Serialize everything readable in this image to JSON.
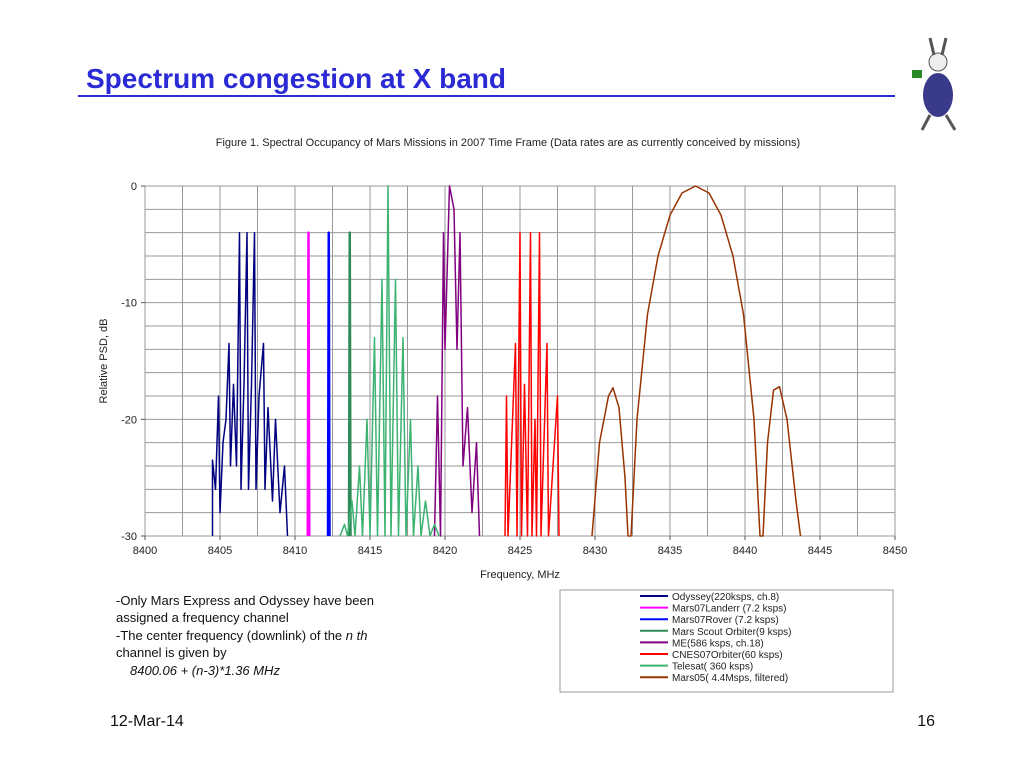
{
  "slide": {
    "title": "Spectrum congestion at X band",
    "notes": [
      "-Only Mars Express and Odyssey have been",
      "assigned a frequency channel",
      "-The center frequency (downlink) of the",
      "n th",
      "channel is given by",
      "8400.06 + (n-3)*1.36 MHz"
    ],
    "date": "12-Mar-14",
    "page": "16"
  },
  "chart_data": {
    "type": "line",
    "title": "Figure 1. Spectral Occupancy of Mars Missions  in 2007 Time Frame (Data rates are as currently conceived by missions)",
    "x_label": "Frequency, MHz",
    "y_label": "Relative PSD, dB",
    "xlim": [
      8400,
      8450
    ],
    "ylim": [
      -30,
      0
    ],
    "xticks": [
      8400,
      8405,
      8410,
      8415,
      8420,
      8425,
      8430,
      8435,
      8440,
      8445,
      8450
    ],
    "yticks": [
      0,
      -10,
      -20,
      -30
    ],
    "xgrid": [
      8400,
      8402.5,
      8405,
      8407.5,
      8410,
      8412.5,
      8415,
      8417.5,
      8420,
      8422.5,
      8425,
      8427.5,
      8430,
      8432.5,
      8435,
      8437.5,
      8440,
      8442.5,
      8445,
      8447.5,
      8450
    ],
    "ygrid": [
      0,
      -2,
      -4,
      -6,
      -8,
      -10,
      -12,
      -14,
      -16,
      -18,
      -20,
      -22,
      -24,
      -26,
      -28,
      -30
    ],
    "legend": "bottom-right",
    "series": [
      {
        "name": "Odyssey(220ksps, ch.8)",
        "color": "#000080",
        "x": [
          8404.5,
          8404.5,
          8404.7,
          8404.9,
          8405.0,
          8405.2,
          8405.4,
          8405.6,
          8405.7,
          8405.9,
          8406.1,
          8406.3,
          8406.4,
          8406.6,
          8406.8,
          8406.9,
          8407.1,
          8407.3,
          8407.4,
          8407.6,
          8407.9,
          8408.0,
          8408.2,
          8408.5,
          8408.7,
          8409.0,
          8409.3,
          8409.5
        ],
        "values": [
          -30,
          -23.5,
          -26,
          -18,
          -28,
          -22,
          -20,
          -13.5,
          -24,
          -17,
          -24,
          -4,
          -26,
          -17,
          -4,
          -26,
          -17,
          -4,
          -26,
          -18,
          -13.5,
          -26,
          -19,
          -27,
          -20,
          -28,
          -24,
          -30
        ]
      },
      {
        "name": "Mars07Landerr (7.2 ksps)",
        "color": "#ff00ff",
        "x": [
          8410.85,
          8410.9,
          8410.95
        ],
        "values": [
          -30,
          -4,
          -30
        ]
      },
      {
        "name": "Mars07Rover (7.2 ksps)",
        "color": "#0000ff",
        "x": [
          8412.2,
          8412.25,
          8412.3
        ],
        "values": [
          -30,
          -4,
          -30
        ]
      },
      {
        "name": "Mars Scout Orbiter(9 ksps)",
        "color": "#2e8b57",
        "x": [
          8413.6,
          8413.65,
          8413.7
        ],
        "values": [
          -30,
          -4,
          -30
        ]
      },
      {
        "name": "ME(586 ksps, ch.18)",
        "color": "#800080",
        "x": [
          8419.3,
          8419.5,
          8419.7,
          8419.9,
          8420.0,
          8420.3,
          8420.6,
          8420.8,
          8421.0,
          8421.2,
          8421.5,
          8421.8,
          8422.1,
          8422.3
        ],
        "values": [
          -30,
          -18,
          -30,
          -4,
          -14,
          0,
          -2,
          -14,
          -4,
          -24,
          -19,
          -28,
          -22,
          -30
        ]
      },
      {
        "name": "CNES07Orbiter(60 ksps)",
        "color": "#ff0000",
        "x": [
          8424.0,
          8424.1,
          8424.2,
          8424.7,
          8424.8,
          8425.0,
          8425.1,
          8425.3,
          8425.5,
          8425.7,
          8425.8,
          8426.0,
          8426.1,
          8426.3,
          8426.4,
          8426.8,
          8426.9,
          8427.5,
          8427.6
        ],
        "values": [
          -30,
          -18,
          -30,
          -13.5,
          -30,
          -4,
          -30,
          -17,
          -30,
          -4,
          -30,
          -20,
          -30,
          -4,
          -30,
          -13.5,
          -30,
          -18,
          -30
        ]
      },
      {
        "name": "Telesat( 360 ksps)",
        "color": "#3cb371",
        "x": [
          8413.0,
          8413.3,
          8413.5,
          8413.8,
          8414.0,
          8414.3,
          8414.5,
          8414.8,
          8415.0,
          8415.3,
          8415.5,
          8415.8,
          8416.0,
          8416.2,
          8416.4,
          8416.7,
          8416.9,
          8417.2,
          8417.4,
          8417.7,
          8417.9,
          8418.2,
          8418.4,
          8418.7,
          8419.0,
          8419.3,
          8419.6
        ],
        "values": [
          -30,
          -29,
          -30,
          -27,
          -30,
          -24,
          -30,
          -20,
          -30,
          -13,
          -30,
          -8,
          -30,
          0,
          -30,
          -8,
          -30,
          -13,
          -30,
          -20,
          -30,
          -24,
          -30,
          -27,
          -30,
          -29,
          -30
        ]
      },
      {
        "name": "Mars05( 4.4Msps, filtered)",
        "color": "#993300",
        "x": [
          8429.8,
          8430.3,
          8430.9,
          8431.2,
          8431.6,
          8432.0,
          8432.2,
          8432.4,
          8432.8,
          8433.5,
          8434.2,
          8435.0,
          8435.8,
          8436.7,
          8437.6,
          8438.4,
          8439.2,
          8439.9,
          8440.6,
          8441.0,
          8441.2,
          8441.5,
          8441.9,
          8442.3,
          8442.8,
          8443.4,
          8443.7
        ],
        "values": [
          -30,
          -22,
          -18,
          -17.3,
          -19,
          -25,
          -30,
          -30,
          -20,
          -11,
          -6,
          -2.5,
          -0.6,
          0,
          -0.6,
          -2.5,
          -6,
          -11,
          -20,
          -30,
          -30,
          -22,
          -17.5,
          -17.2,
          -20,
          -27,
          -30
        ]
      }
    ]
  }
}
